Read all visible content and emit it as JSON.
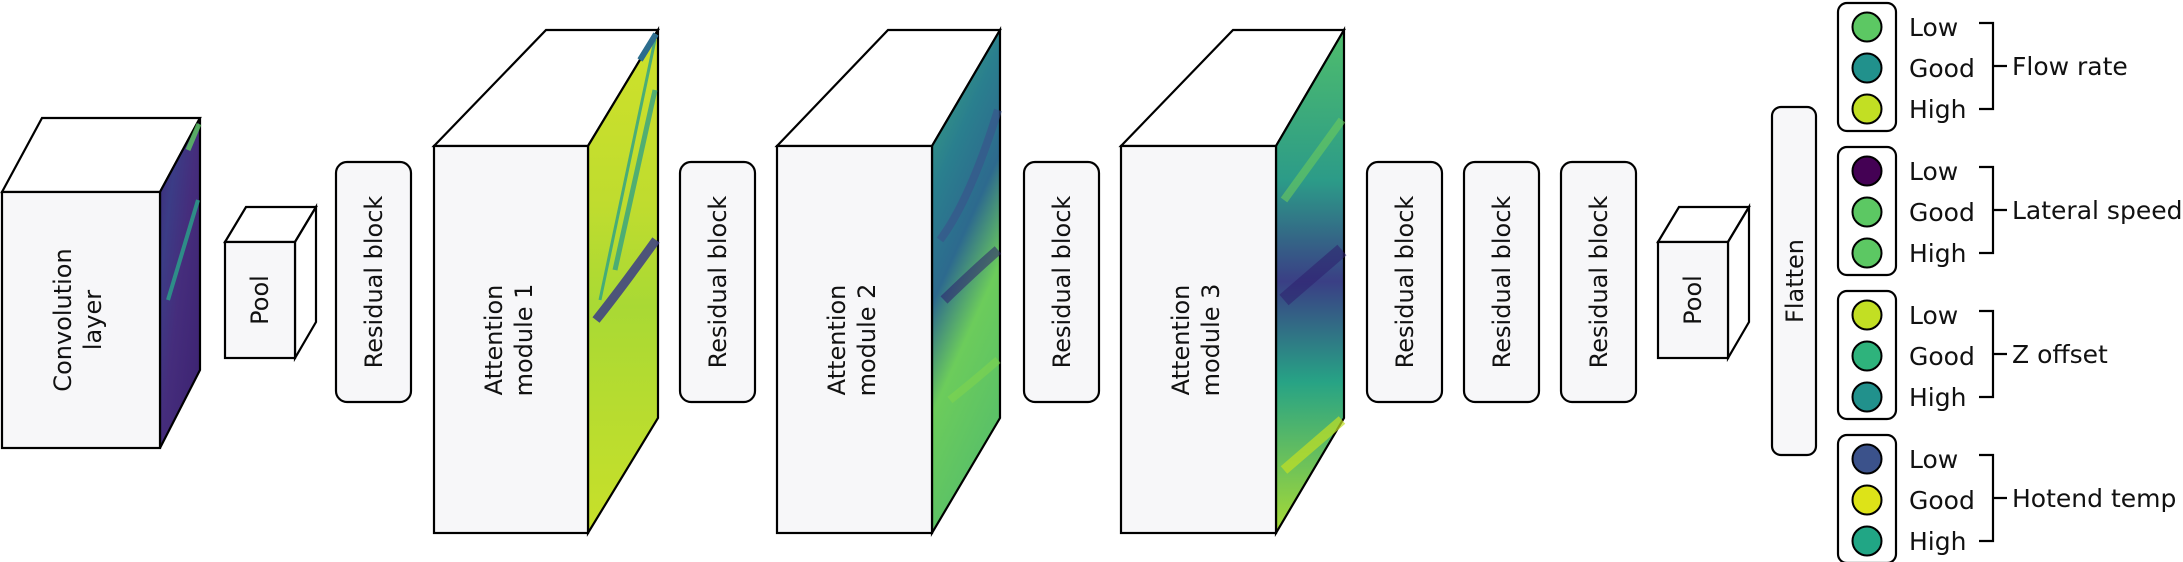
{
  "network": {
    "conv": {
      "line1": "Convolution",
      "line2": "layer"
    },
    "pool1": "Pool",
    "res1": "Residual block",
    "att1": {
      "line1": "Attention",
      "line2": "module 1"
    },
    "res2": "Residual block",
    "att2": {
      "line1": "Attention",
      "line2": "module 2"
    },
    "res3": "Residual block",
    "att3": {
      "line1": "Attention",
      "line2": "module 3"
    },
    "res4": "Residual block",
    "res5": "Residual block",
    "res6": "Residual block",
    "pool2": "Pool",
    "flatten": "Flatten"
  },
  "outputs": [
    {
      "name": "Flow rate",
      "levels": [
        {
          "label": "Low",
          "color": "#5cc863"
        },
        {
          "label": "Good",
          "color": "#21918c"
        },
        {
          "label": "High",
          "color": "#c2df23"
        }
      ]
    },
    {
      "name": "Lateral speed",
      "levels": [
        {
          "label": "Low",
          "color": "#440154"
        },
        {
          "label": "Good",
          "color": "#5cc863"
        },
        {
          "label": "High",
          "color": "#5cc863"
        }
      ]
    },
    {
      "name": "Z offset",
      "levels": [
        {
          "label": "Low",
          "color": "#c2df23"
        },
        {
          "label": "Good",
          "color": "#2eb37c"
        },
        {
          "label": "High",
          "color": "#21918c"
        }
      ]
    },
    {
      "name": "Hotend temp",
      "levels": [
        {
          "label": "Low",
          "color": "#3b528b"
        },
        {
          "label": "Good",
          "color": "#dde318"
        },
        {
          "label": "High",
          "color": "#21a685"
        }
      ]
    }
  ],
  "palette": {
    "dark_purple": "#440154",
    "blue": "#3b528b",
    "teal": "#21918c",
    "green": "#5ec962",
    "yellow": "#fde725",
    "lime": "#c2df23"
  }
}
